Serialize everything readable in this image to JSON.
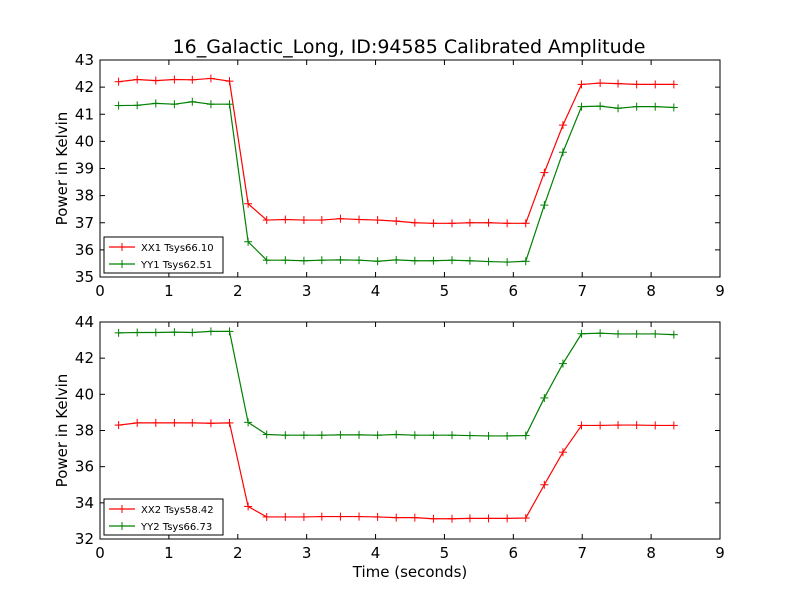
{
  "page": {
    "title": "16_Galactic_Long, ID:94585 Calibrated Amplitude"
  },
  "chart_data": [
    {
      "type": "line",
      "title": "16_Galactic_Long, ID:94585 Calibrated Amplitude",
      "xlabel": "",
      "ylabel": "Power in Kelvin",
      "xlim": [
        0,
        9
      ],
      "ylim": [
        35,
        43
      ],
      "xticks": [
        "0",
        "1",
        "2",
        "3",
        "4",
        "5",
        "6",
        "7",
        "8",
        "9"
      ],
      "yticks": [
        "35",
        "36",
        "37",
        "38",
        "39",
        "40",
        "41",
        "42",
        "43"
      ],
      "grid": false,
      "legend_position": "lower-left",
      "x": [
        0.27,
        0.54,
        0.81,
        1.08,
        1.34,
        1.61,
        1.88,
        2.15,
        2.42,
        2.69,
        2.96,
        3.22,
        3.49,
        3.76,
        4.03,
        4.3,
        4.57,
        4.84,
        5.11,
        5.37,
        5.64,
        5.91,
        6.18,
        6.45,
        6.72,
        6.99,
        7.26,
        7.52,
        7.79,
        8.06,
        8.33
      ],
      "series": [
        {
          "name": "XX1 Tsys66.10",
          "color": "#ff0000",
          "values": [
            42.2,
            42.28,
            42.24,
            42.28,
            42.27,
            42.32,
            42.22,
            37.7,
            37.1,
            37.12,
            37.1,
            37.1,
            37.15,
            37.12,
            37.1,
            37.06,
            37.0,
            36.98,
            36.98,
            37.0,
            37.0,
            36.98,
            36.98,
            38.85,
            40.6,
            42.1,
            42.15,
            42.13,
            42.1,
            42.1,
            42.1
          ]
        },
        {
          "name": "YY1 Tsys62.51",
          "color": "#008000",
          "values": [
            41.32,
            41.33,
            41.4,
            41.37,
            41.46,
            41.37,
            41.37,
            36.3,
            35.62,
            35.62,
            35.6,
            35.62,
            35.63,
            35.62,
            35.58,
            35.63,
            35.6,
            35.6,
            35.62,
            35.6,
            35.57,
            35.55,
            35.58,
            37.65,
            39.6,
            41.28,
            41.3,
            41.22,
            41.28,
            41.28,
            41.25
          ]
        }
      ]
    },
    {
      "type": "line",
      "title": "",
      "xlabel": "Time (seconds)",
      "ylabel": "Power in Kelvin",
      "xlim": [
        0,
        9
      ],
      "ylim": [
        32,
        44
      ],
      "xticks": [
        "0",
        "1",
        "2",
        "3",
        "4",
        "5",
        "6",
        "7",
        "8",
        "9"
      ],
      "yticks": [
        "32",
        "34",
        "36",
        "38",
        "40",
        "42",
        "44"
      ],
      "grid": false,
      "legend_position": "lower-left",
      "x": [
        0.27,
        0.54,
        0.81,
        1.08,
        1.34,
        1.61,
        1.88,
        2.15,
        2.42,
        2.69,
        2.96,
        3.22,
        3.49,
        3.76,
        4.03,
        4.3,
        4.57,
        4.84,
        5.11,
        5.37,
        5.64,
        5.91,
        6.18,
        6.45,
        6.72,
        6.99,
        7.26,
        7.52,
        7.79,
        8.06,
        8.33
      ],
      "series": [
        {
          "name": "XX2 Tsys58.42",
          "color": "#ff0000",
          "values": [
            38.3,
            38.42,
            38.42,
            38.42,
            38.42,
            38.4,
            38.42,
            33.8,
            33.22,
            33.22,
            33.22,
            33.24,
            33.24,
            33.24,
            33.22,
            33.18,
            33.18,
            33.12,
            33.12,
            33.14,
            33.14,
            33.14,
            33.16,
            35.0,
            36.8,
            38.28,
            38.28,
            38.3,
            38.3,
            38.28,
            38.28
          ]
        },
        {
          "name": "YY2 Tsys66.73",
          "color": "#008000",
          "values": [
            43.4,
            43.42,
            43.42,
            43.44,
            43.42,
            43.48,
            43.48,
            38.45,
            37.78,
            37.74,
            37.74,
            37.74,
            37.76,
            37.76,
            37.74,
            37.78,
            37.74,
            37.74,
            37.74,
            37.72,
            37.7,
            37.7,
            37.72,
            39.8,
            41.7,
            43.35,
            43.38,
            43.34,
            43.34,
            43.34,
            43.3
          ]
        }
      ]
    }
  ]
}
